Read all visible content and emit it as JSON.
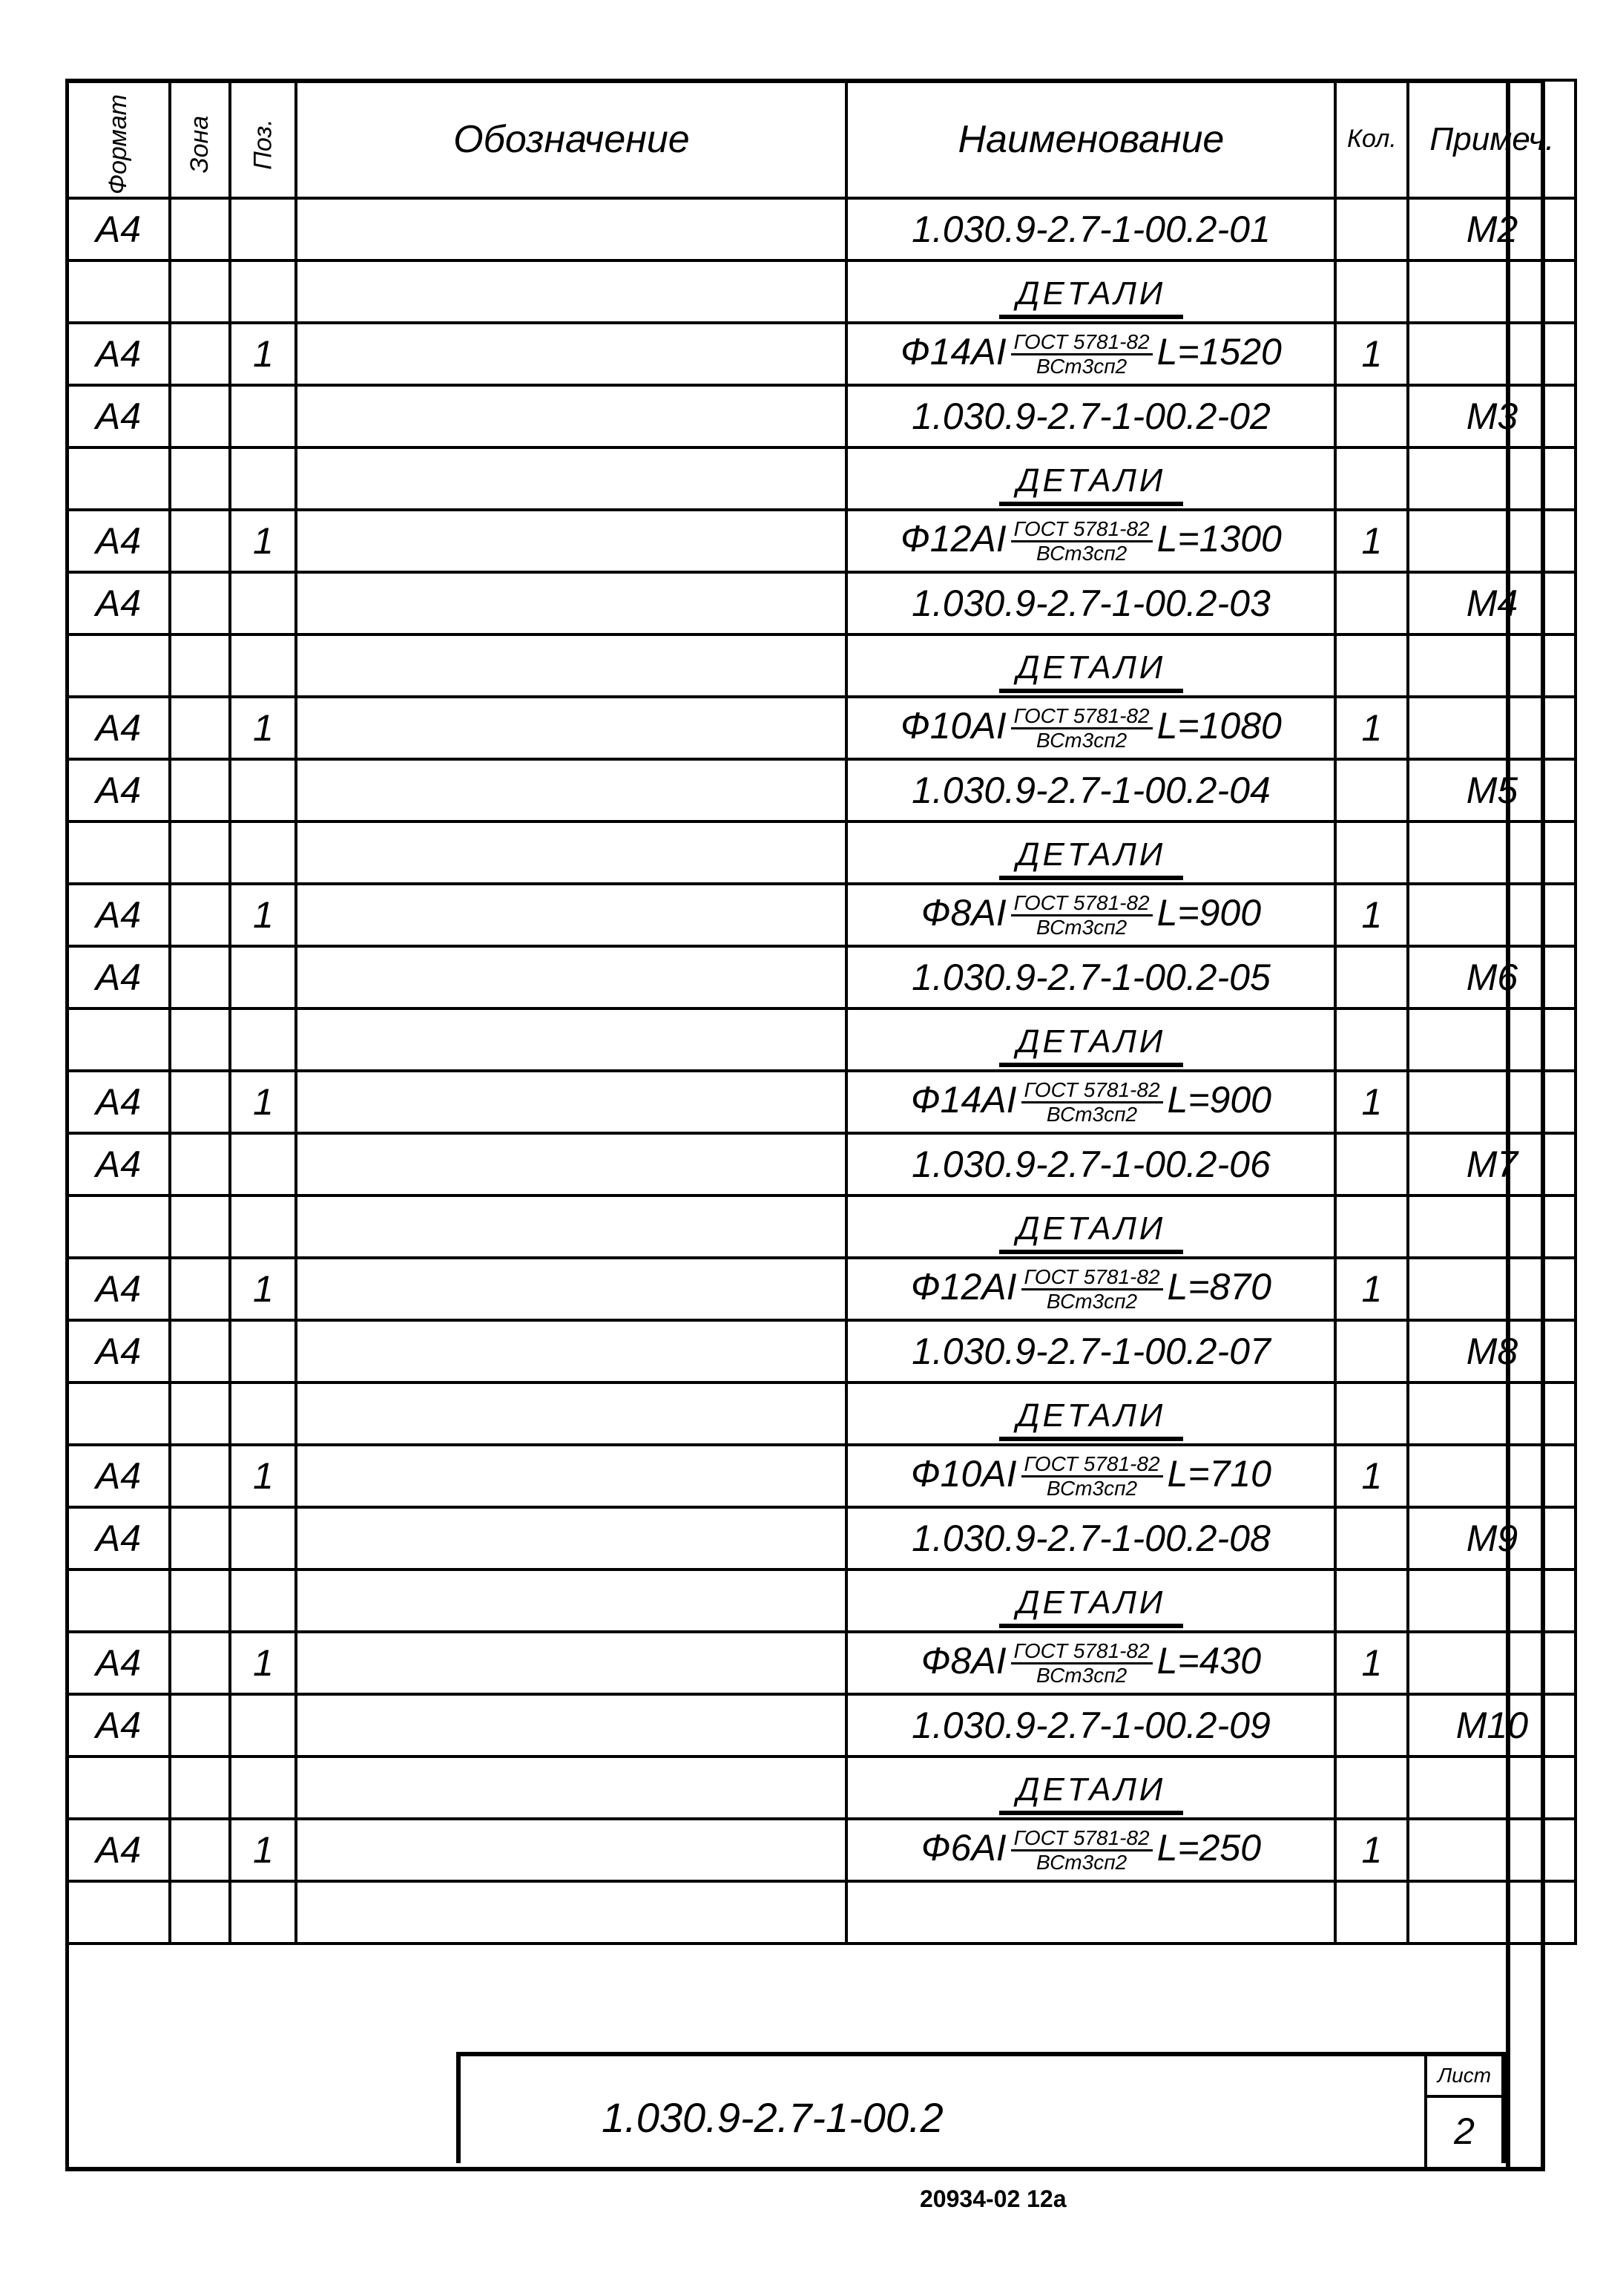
{
  "headers": {
    "format": "Формат",
    "zone": "Зона",
    "pos": "Поз.",
    "designation": "Обозначение",
    "name": "Наименование",
    "qty": "Кол.",
    "note": "Примеч."
  },
  "rows": [
    {
      "fmt": "А4",
      "pos": "",
      "desig": "",
      "name": "1.030.9-2.7-1-00.2-01",
      "qty": "",
      "note": "М2"
    },
    {
      "section": "ДЕТАЛИ"
    },
    {
      "fmt": "А4",
      "pos": "1",
      "desig": "",
      "part": {
        "prefix": "Ф14АI",
        "num": "ГОСТ 5781-82",
        "den": "ВСт3сп2",
        "len": "L=1520"
      },
      "qty": "1",
      "note": ""
    },
    {
      "fmt": "А4",
      "pos": "",
      "desig": "",
      "name": "1.030.9-2.7-1-00.2-02",
      "qty": "",
      "note": "М3"
    },
    {
      "section": "ДЕТАЛИ"
    },
    {
      "fmt": "А4",
      "pos": "1",
      "desig": "",
      "part": {
        "prefix": "Ф12АI",
        "num": "ГОСТ 5781-82",
        "den": "ВСт3сп2",
        "len": "L=1300"
      },
      "qty": "1",
      "note": ""
    },
    {
      "fmt": "А4",
      "pos": "",
      "desig": "",
      "name": "1.030.9-2.7-1-00.2-03",
      "qty": "",
      "note": "М4"
    },
    {
      "section": "ДЕТАЛИ"
    },
    {
      "fmt": "А4",
      "pos": "1",
      "desig": "",
      "part": {
        "prefix": "Ф10АI",
        "num": "ГОСТ 5781-82",
        "den": "ВСт3сп2",
        "len": "L=1080"
      },
      "qty": "1",
      "note": ""
    },
    {
      "fmt": "А4",
      "pos": "",
      "desig": "",
      "name": "1.030.9-2.7-1-00.2-04",
      "qty": "",
      "note": "М5"
    },
    {
      "section": "ДЕТАЛИ"
    },
    {
      "fmt": "А4",
      "pos": "1",
      "desig": "",
      "part": {
        "prefix": "Ф8АI",
        "num": "ГОСТ 5781-82",
        "den": "ВСт3сп2",
        "len": "L=900"
      },
      "qty": "1",
      "note": ""
    },
    {
      "fmt": "А4",
      "pos": "",
      "desig": "",
      "name": "1.030.9-2.7-1-00.2-05",
      "qty": "",
      "note": "М6"
    },
    {
      "section": "ДЕТАЛИ"
    },
    {
      "fmt": "А4",
      "pos": "1",
      "desig": "",
      "part": {
        "prefix": "Ф14АI",
        "num": "ГОСТ 5781-82",
        "den": "ВСт3сп2",
        "len": "L=900"
      },
      "qty": "1",
      "note": ""
    },
    {
      "fmt": "А4",
      "pos": "",
      "desig": "",
      "name": "1.030.9-2.7-1-00.2-06",
      "qty": "",
      "note": "М7"
    },
    {
      "section": "ДЕТАЛИ"
    },
    {
      "fmt": "А4",
      "pos": "1",
      "desig": "",
      "part": {
        "prefix": "Ф12АI",
        "num": "ГОСТ 5781-82",
        "den": "ВСт3сп2",
        "len": "L=870"
      },
      "qty": "1",
      "note": ""
    },
    {
      "fmt": "А4",
      "pos": "",
      "desig": "",
      "name": "1.030.9-2.7-1-00.2-07",
      "qty": "",
      "note": "М8"
    },
    {
      "section": "ДЕТАЛИ"
    },
    {
      "fmt": "А4",
      "pos": "1",
      "desig": "",
      "part": {
        "prefix": "Ф10АI",
        "num": "ГОСТ 5781-82",
        "den": "ВСт3сп2",
        "len": "L=710"
      },
      "qty": "1",
      "note": ""
    },
    {
      "fmt": "А4",
      "pos": "",
      "desig": "",
      "name": "1.030.9-2.7-1-00.2-08",
      "qty": "",
      "note": "М9"
    },
    {
      "section": "ДЕТАЛИ"
    },
    {
      "fmt": "А4",
      "pos": "1",
      "desig": "",
      "part": {
        "prefix": "Ф8АI",
        "num": "ГОСТ 5781-82",
        "den": "ВСт3сп2",
        "len": "L=430"
      },
      "qty": "1",
      "note": ""
    },
    {
      "fmt": "А4",
      "pos": "",
      "desig": "",
      "name": "1.030.9-2.7-1-00.2-09",
      "qty": "",
      "note": "М10"
    },
    {
      "section": "ДЕТАЛИ"
    },
    {
      "fmt": "А4",
      "pos": "1",
      "desig": "",
      "part": {
        "prefix": "Ф6АI",
        "num": "ГОСТ 5781-82",
        "den": "ВСт3сп2",
        "len": "L=250"
      },
      "qty": "1",
      "note": ""
    },
    {
      "fmt": "",
      "pos": "",
      "desig": "",
      "name": "",
      "qty": "",
      "note": ""
    }
  ],
  "stamp": {
    "code": "1.030.9-2.7-1-00.2",
    "sheet_label": "Лист",
    "sheet_number": "2"
  },
  "footer": "20934-02  12а"
}
